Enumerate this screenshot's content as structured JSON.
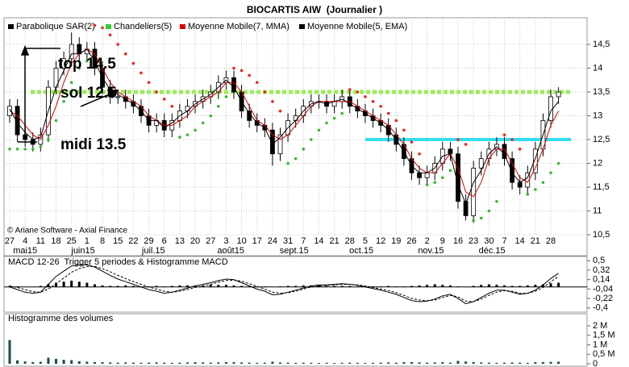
{
  "chart_data": [
    {
      "type": "candlestick",
      "title": "BIOCARTIS AIW  (Journalier )",
      "source": "© Ariane Software - Axial Finance",
      "categories": [
        "27",
        null,
        "4",
        null,
        "11",
        null,
        "18",
        null,
        "25",
        null,
        "1",
        null,
        "8",
        null,
        "15",
        null,
        "22",
        null,
        "29",
        null,
        "6",
        null,
        "13",
        null,
        "20",
        null,
        "27",
        null,
        "3",
        null,
        "10",
        null,
        "17",
        null,
        "24",
        null,
        "31",
        null,
        "7",
        null,
        "14",
        null,
        "21",
        null,
        "28",
        null,
        "5",
        null,
        "12",
        null,
        "19",
        null,
        "26",
        null,
        "2",
        null,
        "9",
        null,
        "16",
        null,
        "23",
        null,
        "30",
        null,
        "7",
        null,
        "14",
        null,
        "21",
        null,
        "28",
        null
      ],
      "months": [
        "mai15",
        "juin15",
        "juil.15",
        "août15",
        "sept.15",
        "oct.15",
        "nov.15",
        "déc.15"
      ],
      "ylim": [
        10.06,
        15.06
      ],
      "yticks": [
        {
          "value": 14.5,
          "label": "14,5"
        },
        14,
        {
          "value": 13.5,
          "label": "13,5"
        },
        13,
        {
          "value": 12.5,
          "label": "12,5"
        },
        12,
        {
          "value": 11.5,
          "label": "11,5"
        },
        11,
        {
          "value": 10.5,
          "label": "10,5"
        }
      ],
      "grid": true,
      "series": [
        {
          "name": "Parabolique SAR(2)",
          "color": "#000000",
          "up_color": "#33bb33",
          "down_color": "#ee2222",
          "values": [
            12.3,
            12.3,
            12.3,
            12.3,
            12.35,
            12.5,
            12.9,
            13.3,
            13.7,
            14.0,
            14.15,
            14.9,
            14.85,
            14.7,
            14.5,
            14.3,
            14.1,
            13.9,
            13.7,
            13.5,
            13.35,
            13.2,
            12.55,
            12.6,
            12.7,
            12.85,
            13.0,
            13.2,
            13.4,
            14.0,
            13.95,
            13.85,
            13.7,
            13.5,
            13.3,
            13.1,
            12.0,
            12.1,
            12.3,
            12.5,
            12.7,
            12.85,
            12.95,
            13.05,
            13.55,
            13.5,
            13.4,
            13.3,
            13.2,
            13.05,
            12.9,
            12.7,
            12.45,
            12.2,
            11.55,
            11.6,
            11.7,
            11.85,
            12.5,
            12.4,
            10.8,
            10.85,
            11.0,
            11.2,
            12.6,
            12.5,
            12.3,
            11.35,
            11.45,
            11.6,
            11.8,
            12.0
          ]
        },
        {
          "name": "Chandeliers(5)",
          "color": "#33cc33",
          "candle_color": "#000000",
          "open": [
            13.0,
            13.2,
            12.6,
            12.5,
            12.4,
            12.6,
            13.6,
            14.0,
            14.2,
            14.5,
            14.3,
            14.4,
            14.0,
            13.6,
            13.4,
            13.4,
            13.3,
            13.2,
            13.0,
            12.8,
            12.9,
            12.7,
            12.9,
            13.1,
            13.2,
            13.3,
            13.4,
            13.5,
            13.7,
            13.8,
            13.5,
            13.1,
            12.9,
            12.8,
            12.7,
            12.2,
            12.6,
            12.9,
            13.0,
            13.2,
            13.3,
            13.3,
            13.2,
            13.3,
            13.4,
            13.2,
            13.1,
            13.0,
            12.9,
            12.8,
            12.6,
            12.4,
            12.1,
            11.8,
            11.7,
            11.8,
            12.0,
            12.3,
            12.2,
            11.2,
            10.9,
            11.9,
            12.1,
            12.3,
            12.4,
            12.1,
            11.6,
            11.5,
            11.8,
            12.3,
            12.9,
            13.4
          ],
          "high": [
            13.35,
            13.35,
            12.75,
            12.65,
            12.75,
            13.75,
            14.15,
            14.35,
            14.75,
            14.65,
            14.55,
            14.55,
            14.15,
            13.75,
            13.55,
            13.55,
            13.45,
            13.35,
            13.15,
            13.05,
            13.05,
            13.05,
            13.25,
            13.35,
            13.45,
            13.55,
            13.65,
            13.85,
            13.95,
            13.95,
            13.65,
            13.25,
            13.05,
            12.95,
            12.85,
            12.75,
            13.05,
            13.15,
            13.35,
            13.45,
            13.45,
            13.45,
            13.45,
            13.55,
            13.55,
            13.35,
            13.25,
            13.15,
            13.05,
            12.95,
            12.75,
            12.55,
            12.25,
            11.95,
            11.95,
            12.15,
            12.45,
            12.45,
            12.35,
            11.35,
            12.05,
            12.25,
            12.45,
            12.55,
            12.55,
            12.25,
            11.75,
            11.95,
            12.45,
            13.05,
            13.55,
            13.6
          ],
          "low": [
            12.85,
            12.45,
            12.35,
            12.25,
            12.25,
            12.45,
            13.45,
            13.85,
            14.05,
            14.15,
            14.15,
            13.85,
            13.45,
            13.25,
            13.25,
            13.15,
            13.05,
            12.85,
            12.65,
            12.65,
            12.55,
            12.55,
            12.75,
            12.95,
            13.05,
            13.15,
            13.25,
            13.35,
            13.55,
            13.35,
            12.95,
            12.75,
            12.65,
            12.55,
            11.95,
            12.05,
            12.45,
            12.75,
            12.85,
            13.05,
            13.15,
            13.05,
            13.05,
            13.15,
            13.05,
            12.95,
            12.85,
            12.75,
            12.65,
            12.45,
            12.25,
            11.95,
            11.65,
            11.55,
            11.55,
            11.65,
            11.85,
            12.05,
            11.05,
            10.8,
            10.75,
            11.75,
            11.95,
            12.15,
            11.95,
            11.45,
            11.35,
            11.35,
            11.65,
            12.15,
            12.75,
            13.25
          ],
          "close": [
            13.2,
            12.6,
            12.5,
            12.4,
            12.6,
            13.6,
            14.0,
            14.2,
            14.5,
            14.3,
            14.4,
            14.0,
            13.6,
            13.4,
            13.4,
            13.3,
            13.2,
            13.0,
            12.8,
            12.9,
            12.7,
            12.9,
            13.1,
            13.2,
            13.3,
            13.4,
            13.5,
            13.7,
            13.8,
            13.5,
            13.1,
            12.9,
            12.8,
            12.7,
            12.2,
            12.6,
            12.9,
            13.0,
            13.2,
            13.3,
            13.3,
            13.2,
            13.3,
            13.4,
            13.2,
            13.1,
            13.0,
            12.9,
            12.8,
            12.6,
            12.4,
            12.1,
            11.8,
            11.7,
            11.8,
            12.0,
            12.3,
            12.2,
            11.2,
            10.9,
            11.9,
            12.1,
            12.3,
            12.4,
            12.1,
            11.6,
            11.5,
            11.8,
            12.3,
            12.9,
            13.4,
            13.5
          ]
        },
        {
          "name": "Moyenne Mobile(7, MMA)",
          "color": "#dd0000",
          "values": [
            13.1,
            13.0,
            12.8,
            12.6,
            12.5,
            12.8,
            13.2,
            13.7,
            14.1,
            14.3,
            14.4,
            14.3,
            14.0,
            13.7,
            13.5,
            13.4,
            13.3,
            13.2,
            13.0,
            12.9,
            12.8,
            12.8,
            12.9,
            13.0,
            13.2,
            13.3,
            13.4,
            13.5,
            13.7,
            13.7,
            13.5,
            13.2,
            12.9,
            12.8,
            12.6,
            12.5,
            12.6,
            12.8,
            13.0,
            13.2,
            13.3,
            13.3,
            13.3,
            13.3,
            13.3,
            13.2,
            13.1,
            13.0,
            12.9,
            12.8,
            12.6,
            12.4,
            12.1,
            11.9,
            11.8,
            11.8,
            12.0,
            12.2,
            11.9,
            11.4,
            11.3,
            11.6,
            12.1,
            12.3,
            12.3,
            12.0,
            11.7,
            11.6,
            11.9,
            12.3,
            12.8,
            13.1
          ]
        },
        {
          "name": "Moyenne Mobile(5, EMA)",
          "color": "#000000",
          "values": [
            13.15,
            12.85,
            12.65,
            12.5,
            12.55,
            13.1,
            13.6,
            13.95,
            14.3,
            14.3,
            14.4,
            14.15,
            13.8,
            13.55,
            13.45,
            13.35,
            13.25,
            13.1,
            12.9,
            12.9,
            12.75,
            12.85,
            13.0,
            13.1,
            13.25,
            13.35,
            13.45,
            13.6,
            13.75,
            13.6,
            13.3,
            13.05,
            12.85,
            12.75,
            12.4,
            12.55,
            12.75,
            12.9,
            13.1,
            13.25,
            13.3,
            13.25,
            13.3,
            13.35,
            13.25,
            13.15,
            13.05,
            12.95,
            12.85,
            12.7,
            12.5,
            12.25,
            11.95,
            11.8,
            11.8,
            11.9,
            12.15,
            12.2,
            11.55,
            11.15,
            11.6,
            11.85,
            12.2,
            12.35,
            12.2,
            11.8,
            11.6,
            11.7,
            12.1,
            12.6,
            13.1,
            13.3
          ]
        }
      ],
      "levels": [
        {
          "value": 13.5,
          "color": "#99ee55"
        },
        {
          "value": 12.5,
          "color": "#33ddee"
        }
      ],
      "annotations": [
        "top 14.5",
        "sol 12.5",
        "midi 13.5"
      ]
    },
    {
      "type": "line",
      "title": "MACD 12-26  Trigger 5 periodes & Histogramme MACD",
      "ylim": [
        -0.48,
        0.58
      ],
      "yticks": [
        {
          "value": 0.5,
          "label": "0,5"
        },
        {
          "value": 0.32,
          "label": "0,32"
        },
        {
          "value": 0.14,
          "label": "0,14"
        },
        {
          "value": -0.04,
          "label": "-0,04"
        },
        {
          "value": -0.22,
          "label": "-0,22"
        },
        {
          "value": -0.4,
          "label": "-0,4"
        }
      ],
      "series": [
        {
          "color": "#000000",
          "values": [
            0.0,
            -0.05,
            -0.1,
            -0.12,
            -0.1,
            0.05,
            0.2,
            0.3,
            0.4,
            0.42,
            0.42,
            0.38,
            0.3,
            0.22,
            0.15,
            0.1,
            0.05,
            0.0,
            -0.05,
            -0.08,
            -0.12,
            -0.1,
            -0.06,
            -0.02,
            0.02,
            0.05,
            0.08,
            0.12,
            0.15,
            0.14,
            0.08,
            0.02,
            -0.04,
            -0.08,
            -0.15,
            -0.14,
            -0.1,
            -0.06,
            -0.02,
            0.02,
            0.04,
            0.04,
            0.05,
            0.06,
            0.05,
            0.03,
            0.0,
            -0.03,
            -0.06,
            -0.1,
            -0.14,
            -0.2,
            -0.26,
            -0.28,
            -0.27,
            -0.23,
            -0.17,
            -0.14,
            -0.22,
            -0.32,
            -0.28,
            -0.2,
            -0.12,
            -0.06,
            -0.06,
            -0.1,
            -0.14,
            -0.12,
            -0.06,
            0.04,
            0.16,
            0.26
          ]
        },
        {
          "color": "#000000",
          "dashed": true,
          "values": [
            0.02,
            -0.01,
            -0.05,
            -0.09,
            -0.1,
            -0.04,
            0.06,
            0.17,
            0.28,
            0.35,
            0.39,
            0.39,
            0.35,
            0.29,
            0.22,
            0.16,
            0.1,
            0.05,
            0.0,
            -0.04,
            -0.08,
            -0.1,
            -0.08,
            -0.05,
            -0.01,
            0.02,
            0.05,
            0.09,
            0.12,
            0.13,
            0.11,
            0.06,
            0.01,
            -0.04,
            -0.1,
            -0.12,
            -0.11,
            -0.08,
            -0.04,
            0.0,
            0.02,
            0.03,
            0.04,
            0.05,
            0.05,
            0.04,
            0.02,
            -0.01,
            -0.04,
            -0.07,
            -0.11,
            -0.16,
            -0.22,
            -0.25,
            -0.26,
            -0.25,
            -0.2,
            -0.16,
            -0.19,
            -0.27,
            -0.28,
            -0.23,
            -0.16,
            -0.1,
            -0.07,
            -0.08,
            -0.12,
            -0.12,
            -0.08,
            -0.01,
            0.1,
            0.2
          ]
        }
      ],
      "histogram": {
        "color": "#000000",
        "values": [
          0.02,
          0.01,
          0,
          0,
          0.02,
          0.05,
          0.08,
          0.1,
          0.12,
          0.1,
          0.08,
          0.05,
          0.03,
          0.02,
          0.02,
          0.03,
          0.02,
          0.01,
          0.01,
          0.02,
          0.01,
          0.02,
          0.03,
          0.03,
          0.03,
          0.03,
          0.04,
          0.04,
          0.04,
          0.03,
          0.02,
          0.01,
          0.01,
          0.01,
          0,
          0.01,
          0.02,
          0.02,
          0.03,
          0.03,
          0.03,
          0.02,
          0.02,
          0.02,
          0.02,
          0.01,
          0.01,
          0.01,
          0.01,
          0.02,
          0.01,
          0.01,
          0.02,
          0.03,
          0.04,
          0.05,
          0.04,
          0.03,
          0.01,
          0,
          0.02,
          0.04,
          0.05,
          0.04,
          0.03,
          0.02,
          0.02,
          0.03,
          0.04,
          0.05,
          0.07,
          0.08
        ]
      }
    },
    {
      "type": "bar",
      "title": "Histogramme des volumes",
      "color": "#1a4a4a",
      "ylim": [
        -170000,
        2640000
      ],
      "yticks": [
        {
          "value": 2000000,
          "label": "2 M"
        },
        {
          "value": 1500000,
          "label": "1,5 M"
        },
        {
          "value": 1000000,
          "label": "1 M"
        },
        {
          "value": 500000,
          "label": "0,5 M"
        },
        0
      ],
      "values": [
        1250000,
        180000,
        120000,
        90000,
        100000,
        320000,
        260000,
        210000,
        190000,
        130000,
        110000,
        90000,
        80000,
        70000,
        60000,
        70000,
        60000,
        50000,
        60000,
        70000,
        60000,
        50000,
        60000,
        70000,
        80000,
        70000,
        60000,
        70000,
        90000,
        80000,
        70000,
        60000,
        50000,
        60000,
        110000,
        70000,
        60000,
        50000,
        60000,
        50000,
        40000,
        50000,
        40000,
        50000,
        60000,
        50000,
        40000,
        50000,
        60000,
        70000,
        60000,
        80000,
        90000,
        70000,
        60000,
        70000,
        80000,
        60000,
        150000,
        120000,
        90000,
        70000,
        60000,
        50000,
        60000,
        70000,
        60000,
        50000,
        80000,
        90000,
        100000,
        110000
      ]
    }
  ]
}
